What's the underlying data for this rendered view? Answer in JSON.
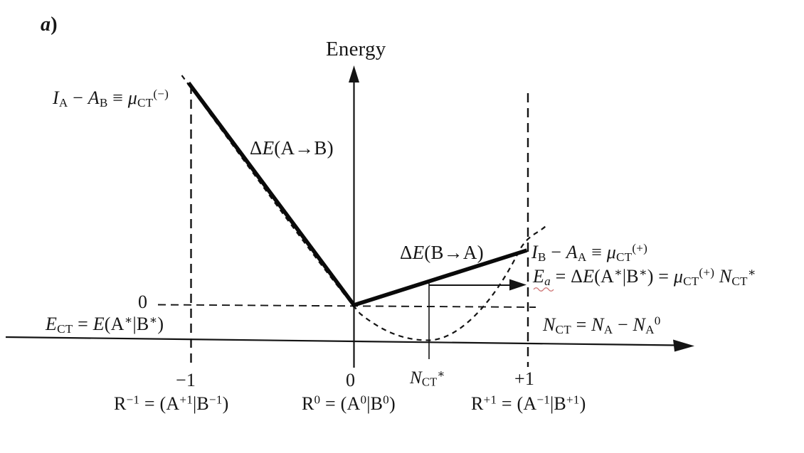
{
  "figure": {
    "panel_label": "*a*)",
    "y_axis_label": "Energy",
    "x_axis_label": "*N*_{CT} = *N*_{A} − *N*_{A}^{0}",
    "zero_level_label": "0",
    "labels": {
      "mu_ct_minus": "*I*_{A} − *A*_{B} ≡ *μ*_{CT}^{(−)}",
      "delta_e_a_to_b": "Δ*E*(A→B)",
      "delta_e_b_to_a": "Δ*E*(B→A)",
      "mu_ct_plus": "*I*_{B} − *A*_{A} ≡ *μ*_{CT}^{(+)}",
      "activation_energy": "*E*_{*a*} = Δ*E*(A^{∗}|B^{∗}) = *μ*_{CT}^{(+)} *N*_{CT}^{∗}",
      "e_ct": "*E*_{CT} = *E*(A^{∗}|B^{∗})"
    },
    "x_ticks": {
      "minus_one": "−1",
      "zero": "0",
      "n_ct_star": "*N*_{CT}^{∗}",
      "plus_one": "+1"
    },
    "state_labels": {
      "r_minus_one": "R^{−1} = (A^{+1}|B^{−1})",
      "r_zero": "R^{0} = (A^{0}|B^{0})",
      "r_plus_one": "R^{+1} = (A^{−1}|B^{+1})"
    },
    "colors": {
      "ink": "#141414",
      "squiggle_red": "#cc7272",
      "background": "#ffffff"
    }
  }
}
